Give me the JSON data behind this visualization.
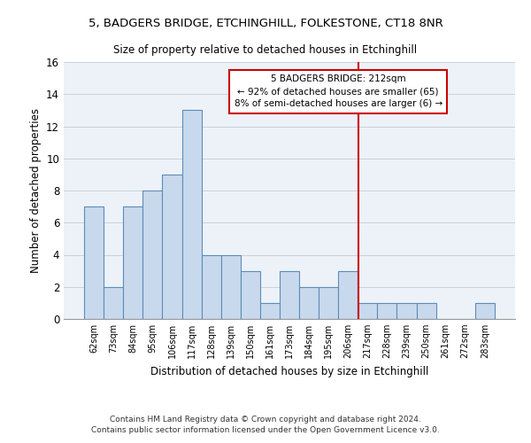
{
  "title": "5, BADGERS BRIDGE, ETCHINGHILL, FOLKESTONE, CT18 8NR",
  "subtitle": "Size of property relative to detached houses in Etchinghill",
  "xlabel": "Distribution of detached houses by size in Etchinghill",
  "ylabel": "Number of detached properties",
  "categories": [
    "62sqm",
    "73sqm",
    "84sqm",
    "95sqm",
    "106sqm",
    "117sqm",
    "128sqm",
    "139sqm",
    "150sqm",
    "161sqm",
    "173sqm",
    "184sqm",
    "195sqm",
    "206sqm",
    "217sqm",
    "228sqm",
    "239sqm",
    "250sqm",
    "261sqm",
    "272sqm",
    "283sqm"
  ],
  "values": [
    7,
    2,
    7,
    8,
    9,
    13,
    4,
    4,
    3,
    1,
    3,
    2,
    2,
    3,
    1,
    1,
    1,
    1,
    0,
    0,
    1
  ],
  "bar_color": "#c9d9ed",
  "bar_edge_color": "#5b8db8",
  "grid_color": "#c8d0dc",
  "vline_color": "#cc0000",
  "annotation_text": "5 BADGERS BRIDGE: 212sqm\n← 92% of detached houses are smaller (65)\n8% of semi-detached houses are larger (6) →",
  "annotation_box_color": "#cc0000",
  "ylim": [
    0,
    16
  ],
  "yticks": [
    0,
    2,
    4,
    6,
    8,
    10,
    12,
    14,
    16
  ],
  "footer": "Contains HM Land Registry data © Crown copyright and database right 2024.\nContains public sector information licensed under the Open Government Licence v3.0.",
  "background_color": "#edf2f9"
}
